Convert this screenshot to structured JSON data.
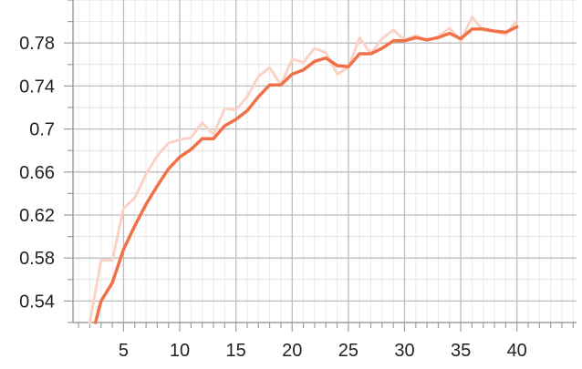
{
  "chart_data": {
    "type": "line",
    "title": "",
    "xlabel": "",
    "ylabel": "",
    "xlim": [
      0.5,
      45.3
    ],
    "ylim": [
      0.52,
      0.82
    ],
    "x_ticks": [
      5,
      10,
      15,
      20,
      25,
      30,
      35,
      40
    ],
    "x_tick_labels": [
      "5",
      "10",
      "15",
      "20",
      "25",
      "30",
      "35",
      "40"
    ],
    "y_ticks": [
      0.54,
      0.58,
      0.62,
      0.66,
      0.7,
      0.74,
      0.78
    ],
    "y_tick_labels": [
      "0.54",
      "0.58",
      "0.62",
      "0.66",
      "0.7",
      "0.74",
      "0.78"
    ],
    "x_minor_step": 1,
    "y_minor_step": 0.02,
    "grid": true,
    "series": [
      {
        "color": "#fbd2c6",
        "style": "raw",
        "x": [
          2,
          3,
          4,
          5,
          6,
          7,
          8,
          9,
          10,
          11,
          12,
          13,
          14,
          15,
          16,
          17,
          18,
          19,
          20,
          21,
          22,
          23,
          24,
          25,
          26,
          27,
          28,
          29,
          30,
          31,
          32,
          33,
          34,
          35,
          36,
          37,
          38,
          39,
          40
        ],
        "y": [
          0.52,
          0.578,
          0.578,
          0.626,
          0.636,
          0.658,
          0.675,
          0.687,
          0.69,
          0.692,
          0.706,
          0.695,
          0.719,
          0.718,
          0.73,
          0.749,
          0.757,
          0.741,
          0.765,
          0.762,
          0.775,
          0.771,
          0.751,
          0.757,
          0.785,
          0.77,
          0.784,
          0.792,
          0.783,
          0.787,
          0.782,
          0.786,
          0.794,
          0.782,
          0.804,
          0.792,
          0.791,
          0.788,
          0.801
        ]
      },
      {
        "color": "#f07148",
        "style": "smoothed",
        "x": [
          2.5,
          3,
          4,
          5,
          6,
          7,
          8,
          9,
          10,
          11,
          12,
          13,
          14,
          15,
          16,
          17,
          18,
          19,
          20,
          21,
          22,
          23,
          24,
          25,
          26,
          27,
          28,
          29,
          30,
          31,
          32,
          33,
          34,
          35,
          36,
          37,
          38,
          39,
          40
        ],
        "y": [
          0.52,
          0.54,
          0.557,
          0.588,
          0.61,
          0.63,
          0.647,
          0.663,
          0.674,
          0.681,
          0.691,
          0.691,
          0.703,
          0.709,
          0.717,
          0.73,
          0.741,
          0.741,
          0.751,
          0.755,
          0.763,
          0.766,
          0.759,
          0.758,
          0.77,
          0.77,
          0.775,
          0.782,
          0.782,
          0.785,
          0.783,
          0.785,
          0.789,
          0.784,
          0.793,
          0.793,
          0.791,
          0.79,
          0.795
        ]
      }
    ]
  }
}
